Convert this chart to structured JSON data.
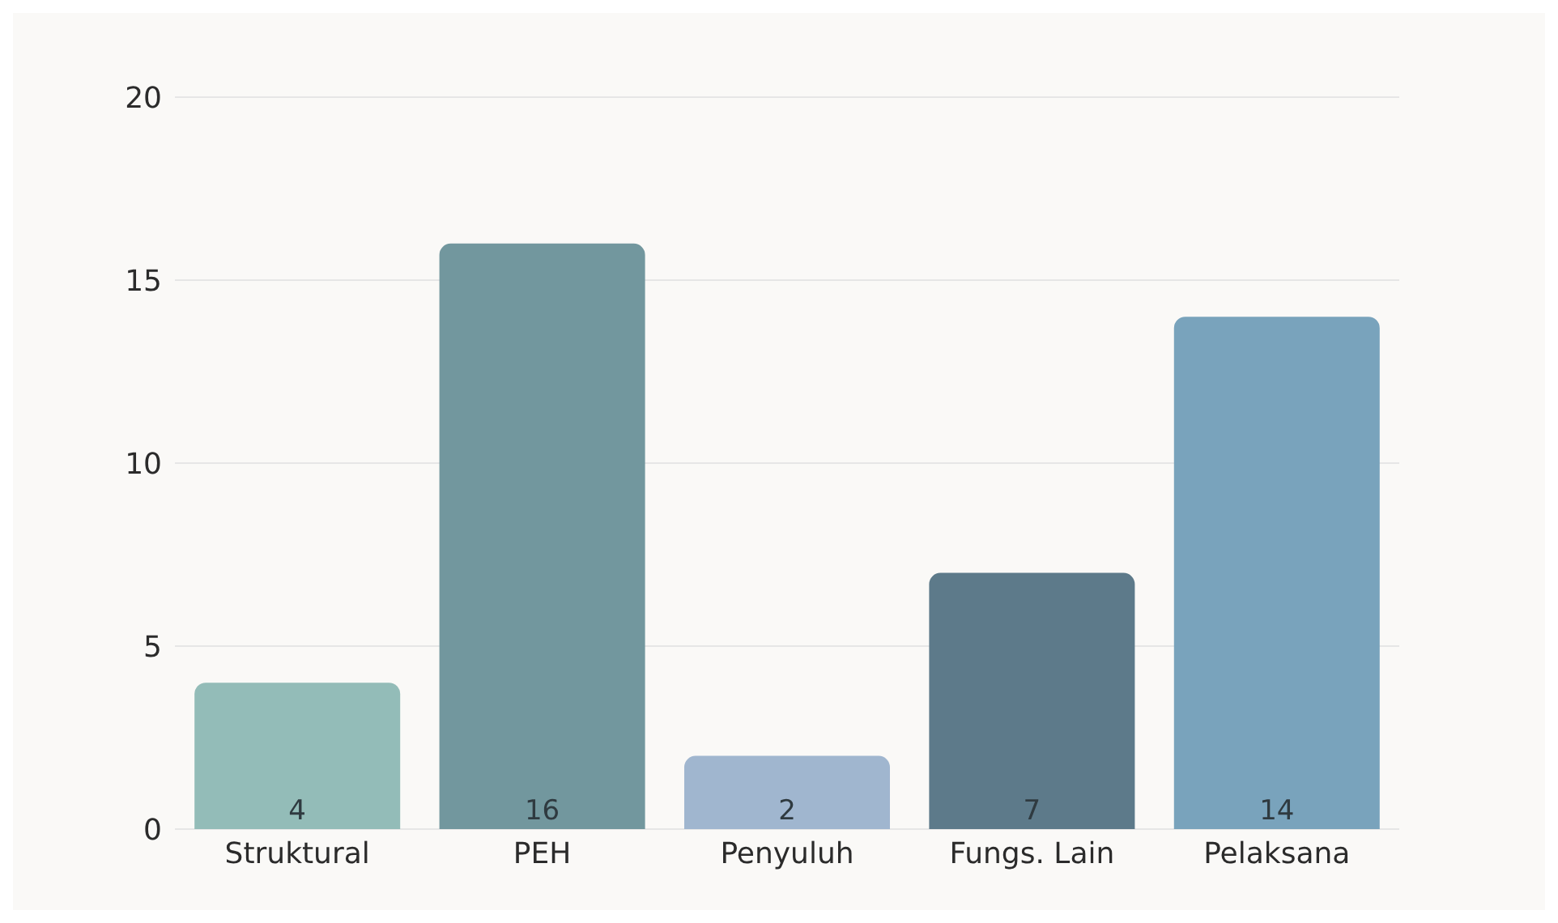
{
  "chart_data": {
    "type": "bar",
    "categories": [
      "Struktural",
      "PEH",
      "Penyuluh",
      "Fungs. Lain",
      "Pelaksana"
    ],
    "values": [
      4,
      16,
      2,
      7,
      14
    ],
    "colors": [
      "#93bcb8",
      "#72979e",
      "#a0b6cf",
      "#5d7a8a",
      "#79a3bc"
    ],
    "ylim": [
      0,
      20
    ],
    "yticks": [
      0,
      5,
      10,
      15,
      20
    ],
    "grid": "y",
    "data_labels": true
  }
}
